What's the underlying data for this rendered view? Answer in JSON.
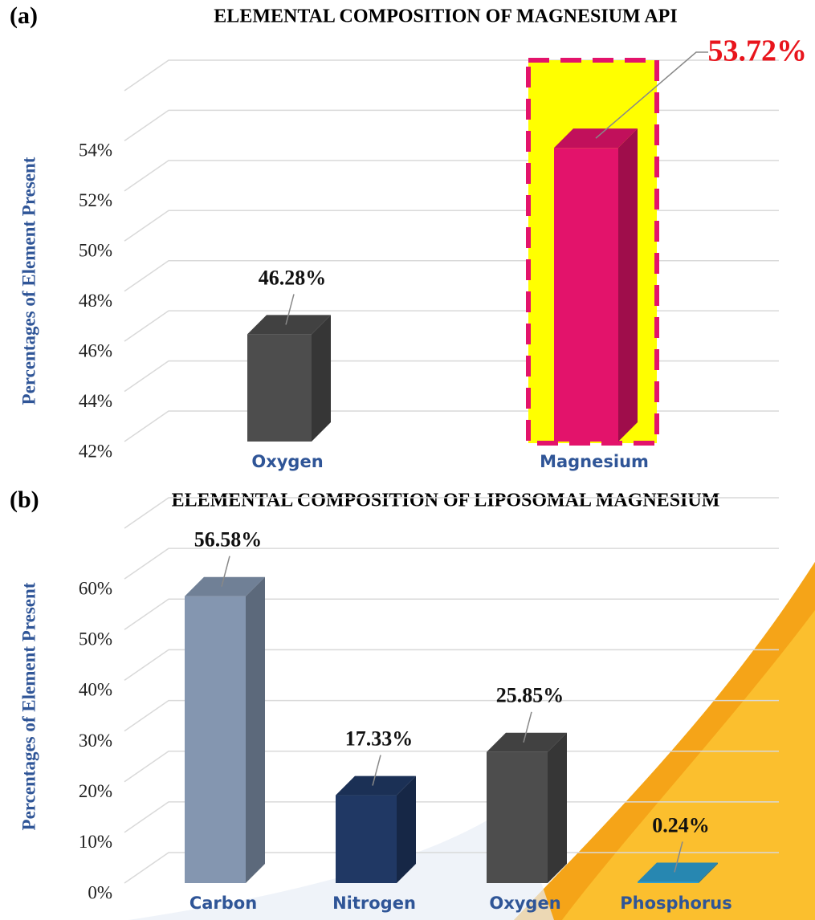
{
  "chart_data": [
    {
      "type": "bar3d",
      "panel": "(a)",
      "title": "ELEMENTAL COMPOSITION OF MAGNESIUM API",
      "y_label": "Percentages of Element Present",
      "categories": [
        "Oxygen",
        "Magnesium"
      ],
      "values": [
        46.28,
        53.72
      ],
      "value_labels": [
        "46.28%",
        "53.72%"
      ],
      "colors": [
        "#4d4d4d",
        "#e3136b"
      ],
      "ylim": [
        42,
        56
      ],
      "yticks": [
        {
          "value": 42,
          "label": "42%"
        },
        {
          "value": 44,
          "label": "44%"
        },
        {
          "value": 46,
          "label": "46%"
        },
        {
          "value": 48,
          "label": "48%"
        },
        {
          "value": 50,
          "label": "50%"
        },
        {
          "value": 52,
          "label": "52%"
        },
        {
          "value": 54,
          "label": "54%"
        }
      ],
      "grid": true
    },
    {
      "type": "bar3d",
      "panel": "(b)",
      "title": "ELEMENTAL COMPOSITION OF LIPOSOMAL MAGNESIUM",
      "y_label": "Percentages of Element Present",
      "categories": [
        "Carbon",
        "Nitrogen",
        "Oxygen",
        "Phosphorus"
      ],
      "values": [
        56.58,
        17.33,
        25.85,
        0.24
      ],
      "value_labels": [
        "56.58%",
        "17.33%",
        "25.85%",
        "0.24%"
      ],
      "colors": [
        "#8496b0",
        "#203864",
        "#4d4d4d",
        "#2e9fd0"
      ],
      "ylim": [
        0,
        70
      ],
      "yticks": [
        {
          "value": 0,
          "label": "0%"
        },
        {
          "value": 10,
          "label": "10%"
        },
        {
          "value": 20,
          "label": "20%"
        },
        {
          "value": 30,
          "label": "30%"
        },
        {
          "value": 40,
          "label": "40%"
        },
        {
          "value": 50,
          "label": "50%"
        },
        {
          "value": 60,
          "label": "60%"
        }
      ],
      "grid": true
    }
  ]
}
